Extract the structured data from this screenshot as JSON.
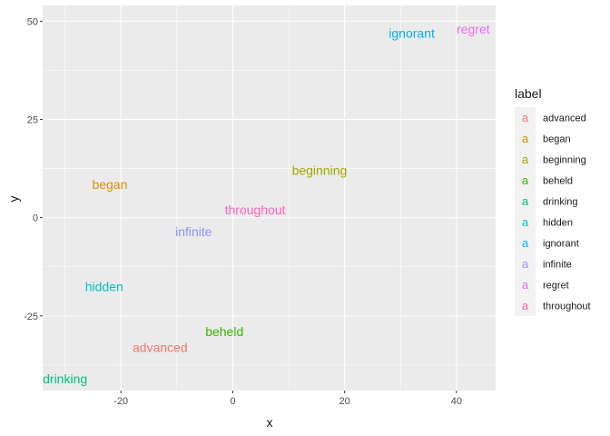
{
  "chart_data": {
    "type": "scatter",
    "title": "",
    "xlabel": "x",
    "ylabel": "y",
    "xlim": [
      -34,
      47
    ],
    "ylim": [
      -44,
      54
    ],
    "x_ticks": [
      -20,
      0,
      20,
      40
    ],
    "y_ticks": [
      -25,
      0,
      25,
      50
    ],
    "x_tick_labels": [
      "-20",
      "0",
      "20",
      "40"
    ],
    "y_tick_labels": [
      "-25",
      "0",
      "25",
      "50"
    ],
    "grid": true,
    "legend": {
      "title": "label",
      "position": "right",
      "key_glyph": "a",
      "entries": [
        "advanced",
        "began",
        "beginning",
        "beheld",
        "drinking",
        "hidden",
        "ignorant",
        "infinite",
        "regret",
        "throughout"
      ]
    },
    "points": [
      {
        "label": "advanced",
        "x": -13,
        "y": -33,
        "color": "#F8766D"
      },
      {
        "label": "began",
        "x": -22,
        "y": 8.5,
        "color": "#D89000"
      },
      {
        "label": "beginning",
        "x": 15.5,
        "y": 12,
        "color": "#A3A500"
      },
      {
        "label": "beheld",
        "x": -1.5,
        "y": -29,
        "color": "#39B600"
      },
      {
        "label": "drinking",
        "x": -30,
        "y": -41,
        "color": "#00BF7D"
      },
      {
        "label": "hidden",
        "x": -23,
        "y": -17.5,
        "color": "#00BFC4"
      },
      {
        "label": "ignorant",
        "x": 32,
        "y": 47,
        "color": "#00B0F6"
      },
      {
        "label": "infinite",
        "x": -7,
        "y": -3.5,
        "color": "#9590FF"
      },
      {
        "label": "regret",
        "x": 43,
        "y": 48,
        "color": "#E76BF3"
      },
      {
        "label": "throughout",
        "x": 4,
        "y": 2,
        "color": "#FF62BC"
      }
    ]
  }
}
